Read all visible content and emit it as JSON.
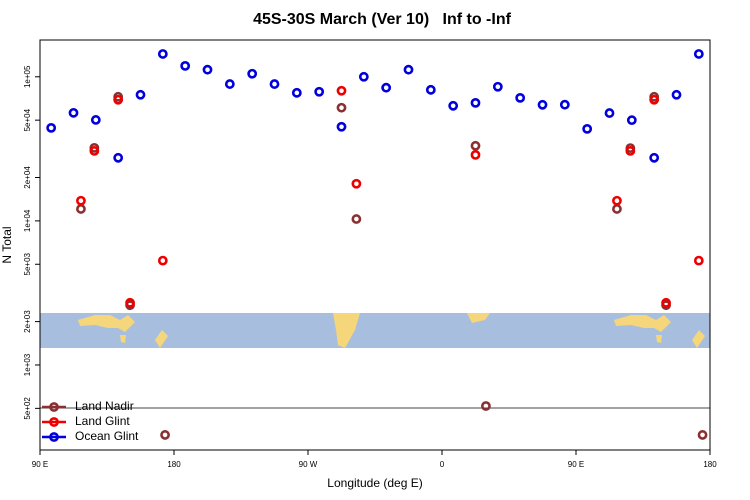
{
  "chart_data": {
    "type": "scatter",
    "title": "45S-30S March (Ver 10)   Inf to -Inf",
    "x_label": "Longitude (deg E)",
    "y_label": "N Total",
    "log_y": true,
    "xlim": [
      90,
      540
    ],
    "xticks": [
      {
        "value": 90,
        "label": "90 E"
      },
      {
        "value": 180,
        "label": "180"
      },
      {
        "value": 270,
        "label": "90 W"
      },
      {
        "value": 360,
        "label": "0"
      },
      {
        "value": 450,
        "label": "90 E"
      },
      {
        "value": 540,
        "label": "180"
      }
    ],
    "ylim": [
      257,
      180000
    ],
    "yticks": [
      {
        "value": 500,
        "label": "5e+02"
      },
      {
        "value": 1000,
        "label": "1e+03"
      },
      {
        "value": 2000,
        "label": "2e+03"
      },
      {
        "value": 5000,
        "label": "5e+03"
      },
      {
        "value": 10000,
        "label": "1e+04"
      },
      {
        "value": 20000,
        "label": "2e+04"
      },
      {
        "value": 50000,
        "label": "5e+04"
      },
      {
        "value": 100000,
        "label": "1e+05"
      }
    ],
    "legend": "bottom-left",
    "series": [
      {
        "name": "Land Nadir",
        "color": "#8b3030",
        "x": [
          117.5,
          126.5,
          142.5,
          150.5,
          174,
          292.5,
          302.5,
          382.5,
          389.5,
          477.5,
          486.5,
          502.5,
          510.5,
          535
        ],
        "values": [
          12100,
          32100,
          72600,
          2600,
          327,
          61000,
          10300,
          33200,
          519,
          12100,
          32000,
          72600,
          2600,
          327
        ]
      },
      {
        "name": "Land Glint",
        "color": "#ee0000",
        "x": [
          117.5,
          126.5,
          142.5,
          150.5,
          172.5,
          292.5,
          302.5,
          382.5,
          477.5,
          486.5,
          502.5,
          510.5,
          532.5
        ],
        "values": [
          13800,
          30600,
          69300,
          2700,
          5300,
          80000,
          18100,
          28700,
          13800,
          30600,
          69300,
          2700,
          5300
        ]
      },
      {
        "name": "Ocean Glint",
        "color": "#0000dd",
        "x": [
          97.5,
          112.5,
          127.5,
          142.5,
          157.5,
          172.5,
          187.5,
          202.5,
          217.5,
          232.5,
          247.5,
          262.5,
          277.5,
          292.5,
          307.5,
          322.5,
          337.5,
          352.5,
          367.5,
          382.5,
          397.5,
          412.5,
          427.5,
          442.5,
          457.5,
          472.5,
          487.5,
          502.5,
          517.5,
          532.5
        ],
        "values": [
          44200,
          56200,
          50200,
          27400,
          75000,
          144000,
          119000,
          112000,
          89000,
          105000,
          89000,
          77400,
          78700,
          45000,
          100000,
          84000,
          112000,
          81200,
          62900,
          65900,
          85300,
          71400,
          63900,
          64000,
          43500,
          56000,
          50000,
          27400,
          75000,
          144000
        ]
      }
    ]
  }
}
